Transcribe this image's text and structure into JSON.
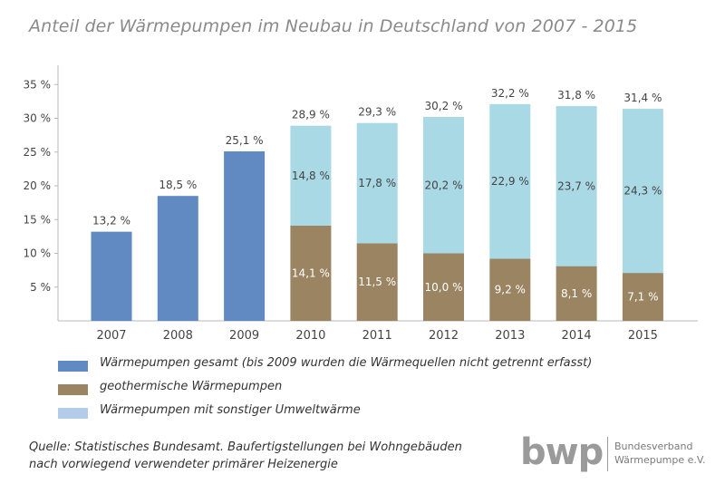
{
  "title": "Anteil der Wärmepumpen im Neubau in Deutschland von 2007 - 2015",
  "colors": {
    "gesamt": "#6189c2",
    "geo": "#9b8461",
    "sonstige": "#a9d9e5",
    "axis": "#b8b8b8",
    "text": "#444444"
  },
  "chart_data": {
    "type": "bar",
    "stacked": true,
    "categories": [
      "2007",
      "2008",
      "2009",
      "2010",
      "2011",
      "2012",
      "2013",
      "2014",
      "2015"
    ],
    "ylim": [
      0,
      37.5
    ],
    "yticks": [
      5,
      10,
      15,
      20,
      25,
      30,
      35
    ],
    "ytick_labels": [
      "5 %",
      "10 %",
      "15 %",
      "20 %",
      "25 %",
      "30 %",
      "35 %"
    ],
    "xlabel": "",
    "ylabel": "",
    "series": [
      {
        "name": "Wärmepumpen gesamt (bis 2009 wurden die Wärmequellen nicht getrennt erfasst)",
        "values": [
          13.2,
          18.5,
          25.1,
          null,
          null,
          null,
          null,
          null,
          null
        ],
        "labels": [
          "",
          "",
          "",
          "",
          "",
          "",
          "",
          "",
          ""
        ]
      },
      {
        "name": "geothermische Wärmepumpen",
        "values": [
          null,
          null,
          null,
          14.1,
          11.5,
          10.0,
          9.2,
          8.1,
          7.1
        ],
        "labels": [
          "",
          "",
          "",
          "14,1 %",
          "11,5 %",
          "10,0 %",
          "9,2 %",
          "8,1 %",
          "7,1 %"
        ]
      },
      {
        "name": "Wärmepumpen mit sonstiger Umweltwärme",
        "values": [
          null,
          null,
          null,
          14.8,
          17.8,
          20.2,
          22.9,
          23.7,
          24.3
        ],
        "labels": [
          "",
          "",
          "",
          "14,8 %",
          "17,8 %",
          "20,2 %",
          "22,9 %",
          "23,7 %",
          "24,3 %"
        ]
      }
    ],
    "totals": [
      "13,2 %",
      "18,5 %",
      "25,1 %",
      "28,9 %",
      "29,3 %",
      "30,2 %",
      "32,2 %",
      "31,8 %",
      "31,4 %"
    ],
    "grid": false,
    "legend_position": "bottom-left"
  },
  "legend": [
    {
      "label": "Wärmepumpen gesamt (bis 2009 wurden die Wärmequellen nicht getrennt erfasst)",
      "color": "#6189c2"
    },
    {
      "label": "geothermische Wärmepumpen",
      "color": "#9b8461"
    },
    {
      "label": "Wärmepumpen mit sonstiger Umweltwärme",
      "color": "#b3cde8"
    }
  ],
  "source": {
    "line1": "Quelle: Statistisches Bundesamt. Baufertigstellungen bei Wohngebäuden",
    "line2": "nach vorwiegend verwendeter primärer Heizenergie"
  },
  "logo": {
    "word": "bwp",
    "line1": "Bundesverband",
    "line2": "Wärmepumpe e.V."
  }
}
